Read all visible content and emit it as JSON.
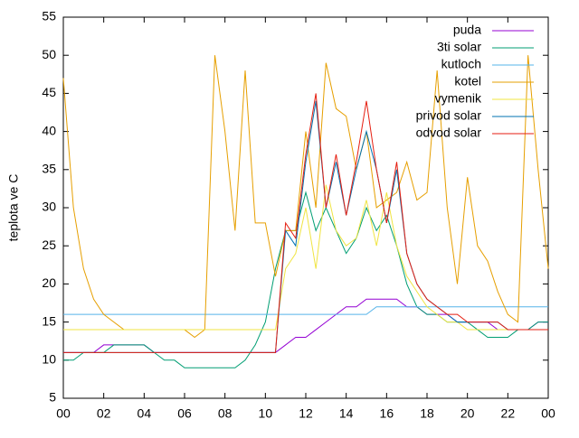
{
  "chart_data": {
    "type": "line",
    "ylabel": "teplota ve C",
    "x": [
      0,
      0.5,
      1,
      1.5,
      2,
      2.5,
      3,
      3.5,
      4,
      4.5,
      5,
      5.5,
      6,
      6.5,
      7,
      7.5,
      8,
      8.5,
      9,
      9.5,
      10,
      10.5,
      11,
      11.5,
      12,
      12.5,
      13,
      13.5,
      14,
      14.5,
      15,
      15.5,
      16,
      16.5,
      17,
      17.5,
      18,
      18.5,
      19,
      19.5,
      20,
      20.5,
      21,
      21.5,
      22,
      22.5,
      23,
      23.5,
      24
    ],
    "series": [
      {
        "name": "puda",
        "color": "#9400d3",
        "values": [
          11,
          11,
          11,
          11,
          12,
          12,
          12,
          12,
          12,
          11,
          11,
          11,
          11,
          11,
          11,
          11,
          11,
          11,
          11,
          11,
          11,
          11,
          12,
          13,
          13,
          14,
          15,
          16,
          17,
          17,
          18,
          18,
          18,
          18,
          17,
          17,
          16,
          16,
          16,
          15,
          15,
          15,
          15,
          14,
          14,
          14,
          14,
          15,
          15
        ]
      },
      {
        "name": "3ti solar",
        "color": "#009e73",
        "values": [
          10,
          10,
          11,
          11,
          11,
          12,
          12,
          12,
          12,
          11,
          10,
          10,
          9,
          9,
          9,
          9,
          9,
          9,
          10,
          12,
          15,
          22,
          27,
          27,
          32,
          27,
          30,
          27,
          24,
          26,
          30,
          27,
          29,
          25,
          20,
          17,
          16,
          16,
          15,
          15,
          15,
          14,
          13,
          13,
          13,
          14,
          14,
          15,
          15
        ]
      },
      {
        "name": "kutloch",
        "color": "#56b4e9",
        "values": [
          16,
          16,
          16,
          16,
          16,
          16,
          16,
          16,
          16,
          16,
          16,
          16,
          16,
          16,
          16,
          16,
          16,
          16,
          16,
          16,
          16,
          16,
          16,
          16,
          16,
          16,
          16,
          16,
          16,
          16,
          16,
          17,
          17,
          17,
          17,
          17,
          17,
          17,
          17,
          17,
          17,
          17,
          17,
          17,
          17,
          17,
          17,
          17,
          17
        ]
      },
      {
        "name": "kotel",
        "color": "#e69f00",
        "values": [
          47,
          30,
          22,
          18,
          16,
          15,
          14,
          14,
          14,
          14,
          14,
          14,
          14,
          13,
          14,
          50,
          40,
          27,
          48,
          28,
          28,
          21,
          27,
          27,
          40,
          30,
          49,
          43,
          42,
          35,
          40,
          30,
          31,
          32,
          36,
          31,
          32,
          48,
          30,
          20,
          34,
          25,
          23,
          19,
          16,
          15,
          50,
          35,
          22
        ]
      },
      {
        "name": "vymenik",
        "color": "#f0e442",
        "values": [
          14,
          14,
          14,
          14,
          14,
          14,
          14,
          14,
          14,
          14,
          14,
          14,
          14,
          14,
          14,
          14,
          14,
          14,
          14,
          14,
          14,
          14,
          22,
          24,
          30,
          22,
          33,
          27,
          25,
          26,
          31,
          25,
          32,
          25,
          21,
          19,
          17,
          16,
          15,
          15,
          14,
          14,
          14,
          14,
          14,
          14,
          14,
          14,
          14
        ]
      },
      {
        "name": "privod solar",
        "color": "#0072b2",
        "values": [
          11,
          11,
          11,
          11,
          11,
          11,
          11,
          11,
          11,
          11,
          11,
          11,
          11,
          11,
          11,
          11,
          11,
          11,
          11,
          11,
          11,
          11,
          27,
          25,
          36,
          44,
          30,
          36,
          29,
          35,
          40,
          35,
          28,
          35,
          24,
          20,
          18,
          17,
          16,
          15,
          15,
          15,
          15,
          15,
          14,
          14,
          14,
          14,
          14
        ]
      },
      {
        "name": "odvod solar",
        "color": "#e51e10",
        "values": [
          11,
          11,
          11,
          11,
          11,
          11,
          11,
          11,
          11,
          11,
          11,
          11,
          11,
          11,
          11,
          11,
          11,
          11,
          11,
          11,
          11,
          11,
          28,
          26,
          37,
          45,
          30,
          37,
          29,
          36,
          44,
          35,
          28,
          36,
          24,
          20,
          18,
          17,
          16,
          16,
          15,
          15,
          15,
          15,
          14,
          14,
          14,
          14,
          14
        ]
      }
    ],
    "xlim": [
      0,
      24
    ],
    "xticks": [
      {
        "value": 0,
        "label": "00"
      },
      {
        "value": 2,
        "label": "02"
      },
      {
        "value": 4,
        "label": "04"
      },
      {
        "value": 6,
        "label": "06"
      },
      {
        "value": 8,
        "label": "08"
      },
      10,
      12,
      14,
      16,
      18,
      20,
      22,
      {
        "value": 24,
        "label": "00"
      }
    ],
    "ylim": [
      5,
      55
    ],
    "yticks": [
      5,
      10,
      15,
      20,
      25,
      30,
      35,
      40,
      45,
      50,
      55
    ],
    "legend": "top-right"
  }
}
